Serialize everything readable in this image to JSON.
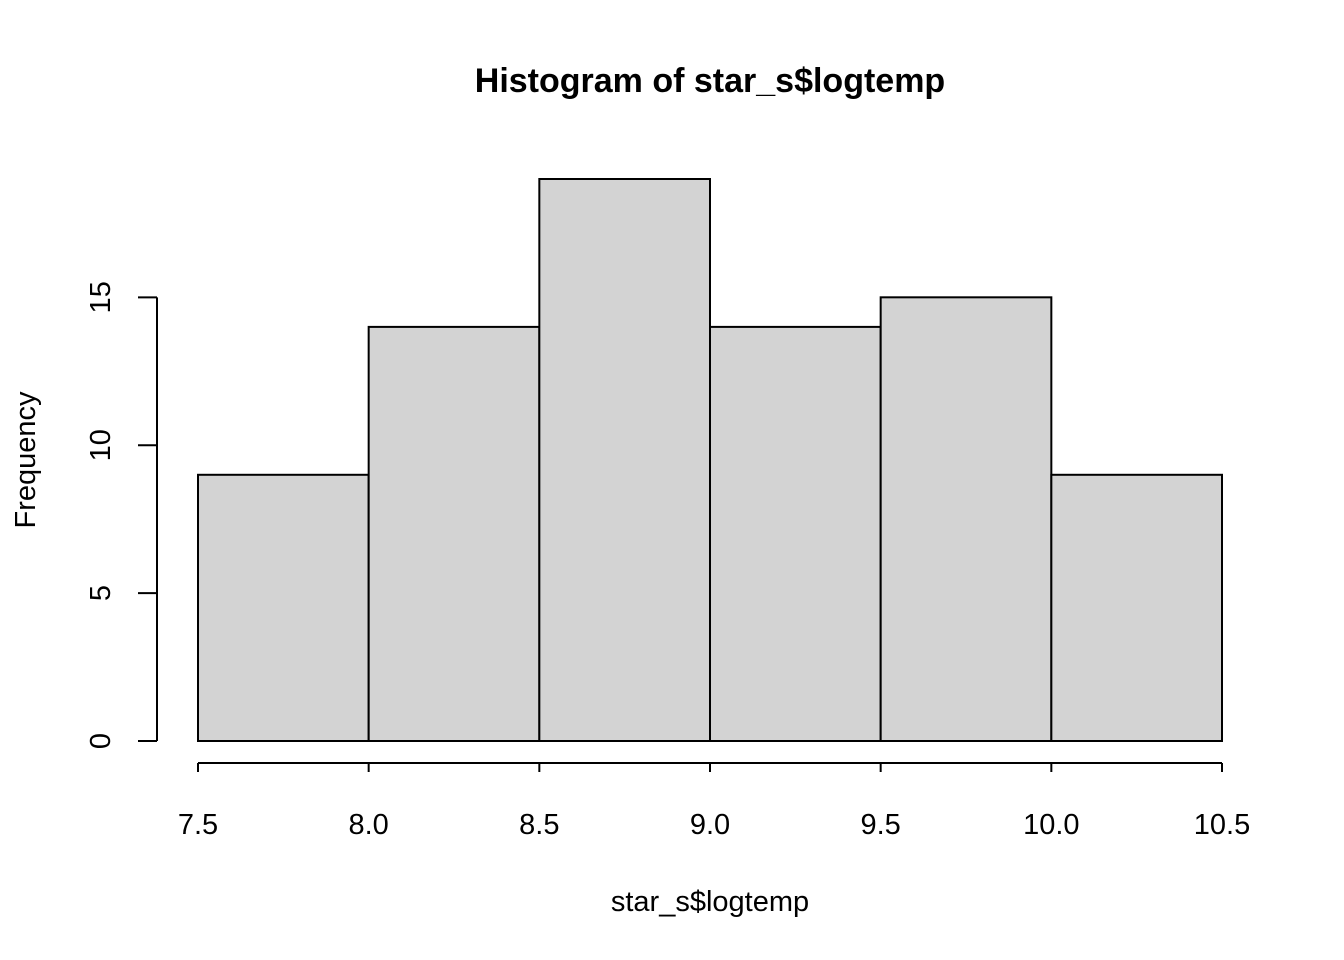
{
  "chart_data": {
    "type": "bar",
    "subtype": "histogram",
    "title": "Histogram of star_s$logtemp",
    "xlabel": "star_s$logtemp",
    "ylabel": "Frequency",
    "bins": [
      {
        "start": 7.5,
        "end": 8.0,
        "count": 9
      },
      {
        "start": 8.0,
        "end": 8.5,
        "count": 14
      },
      {
        "start": 8.5,
        "end": 9.0,
        "count": 19
      },
      {
        "start": 9.0,
        "end": 9.5,
        "count": 14
      },
      {
        "start": 9.5,
        "end": 10.0,
        "count": 15
      },
      {
        "start": 10.0,
        "end": 10.5,
        "count": 9
      }
    ],
    "xlim": [
      7.5,
      10.5
    ],
    "ylim": [
      0,
      19
    ],
    "x_ticks": [
      "7.5",
      "8.0",
      "8.5",
      "9.0",
      "9.5",
      "10.0",
      "10.5"
    ],
    "y_ticks": [
      "0",
      "5",
      "10",
      "15"
    ],
    "grid": false,
    "legend": "none",
    "colors": {
      "bar_fill": "#d3d3d3",
      "bar_stroke": "#000000",
      "text": "#000000",
      "background": "#ffffff"
    }
  }
}
